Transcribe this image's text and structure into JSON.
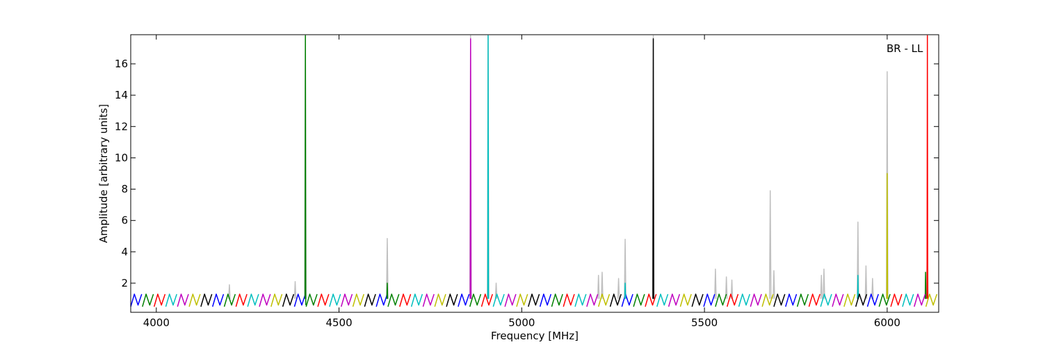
{
  "chart_data": {
    "type": "line",
    "xlabel": "Frequency [MHz]",
    "ylabel": "Amplitude [arbitrary units]",
    "annotation": "BR - LL",
    "xlim": [
      3930,
      6141
    ],
    "ylim": [
      0.14,
      17.86
    ],
    "xticks": [
      4000,
      4500,
      5000,
      5500,
      6000
    ],
    "yticks": [
      2,
      4,
      6,
      8,
      10,
      12,
      14,
      16
    ],
    "series": [
      {
        "color": "#c0c0c0",
        "x": [
          4198,
          4200,
          4202,
          null,
          4378,
          4380,
          4382,
          null,
          4406,
          4408,
          4410,
          null,
          4630,
          4632,
          4634,
          null,
          4858,
          4860,
          4862,
          null,
          4906,
          4908,
          4910,
          null,
          4928,
          4930,
          4932,
          null,
          5208,
          5210,
          5212,
          null,
          5218,
          5220,
          5222,
          null,
          5263,
          5265,
          5267,
          null,
          5281,
          5283,
          5285,
          null,
          5358,
          5360,
          5362,
          null,
          5528,
          5530,
          5532,
          null,
          5558,
          5560,
          5562,
          null,
          5573,
          5575,
          5577,
          null,
          5678,
          5680,
          5682,
          null,
          5688,
          5690,
          5692,
          null,
          5818,
          5820,
          5822,
          null,
          5825,
          5827,
          5829,
          null,
          5918,
          5920,
          5922,
          null,
          5940,
          5942,
          5944,
          null,
          5958,
          5960,
          5962,
          null,
          5998,
          6000,
          6002,
          null,
          6108,
          6110,
          6112
        ],
        "values": [
          1,
          1.9,
          1,
          null,
          1,
          2.1,
          1,
          null,
          1,
          17.8,
          1,
          null,
          1,
          4.85,
          1,
          null,
          1,
          17.8,
          1,
          null,
          1,
          17.8,
          1,
          null,
          1,
          2,
          1,
          null,
          1,
          2.5,
          1,
          null,
          1,
          2.7,
          1,
          null,
          1,
          2.3,
          1,
          null,
          1,
          4.8,
          1,
          null,
          1,
          17.8,
          1,
          null,
          1,
          2.9,
          1,
          null,
          1,
          2.4,
          1,
          null,
          1,
          2.2,
          1,
          null,
          1,
          7.9,
          1,
          null,
          1,
          2.8,
          1,
          null,
          1,
          2.5,
          1,
          null,
          1,
          2.9,
          1,
          null,
          1,
          5.9,
          1,
          null,
          1,
          3.1,
          1,
          null,
          1,
          2.3,
          1,
          null,
          1,
          15.5,
          1,
          null,
          1,
          5.3,
          1
        ]
      },
      {
        "color": "#0000ff",
        "x": [
          3930,
          3940,
          3950,
          3960,
          null,
          4154,
          4164,
          4174,
          4184,
          null,
          4378,
          4388,
          4398,
          4408,
          null,
          4602,
          4612,
          4622,
          4632,
          null,
          4826,
          4836,
          4846,
          4856,
          null,
          5050,
          5060,
          5070,
          5080,
          null,
          5274,
          5284,
          5294,
          5304,
          null,
          5498,
          5508,
          5518,
          5528,
          null,
          5722,
          5732,
          5742,
          5752,
          null,
          5946,
          5956,
          5966,
          5976
        ],
        "values": [
          0.5,
          1.3,
          0.6,
          1.3,
          null,
          0.5,
          1.3,
          0.6,
          1.3,
          null,
          0.5,
          1.3,
          0.6,
          1.3,
          null,
          0.5,
          1.3,
          0.6,
          1.3,
          null,
          0.5,
          1.3,
          0.6,
          1.3,
          null,
          0.5,
          1.3,
          0.6,
          1.3,
          null,
          0.5,
          1.3,
          0.6,
          1.3,
          null,
          0.5,
          1.3,
          0.6,
          1.3,
          null,
          0.5,
          1.3,
          0.6,
          1.3,
          null,
          0.5,
          1.3,
          0.6,
          1.3
        ]
      },
      {
        "color": "#008000",
        "x": [
          3962,
          3972,
          3982,
          3992,
          null,
          4186,
          4196,
          4206,
          4216,
          null,
          4410,
          4420,
          4430,
          4440,
          null,
          4634,
          4644,
          4654,
          4664,
          null,
          4858,
          4868,
          4878,
          4888,
          null,
          5082,
          5092,
          5102,
          5112,
          null,
          5306,
          5316,
          5326,
          5336,
          null,
          5530,
          5540,
          5550,
          5560,
          null,
          5754,
          5764,
          5774,
          5784,
          null,
          5978,
          5988,
          5998,
          6008,
          null,
          4407,
          4408,
          4409,
          null,
          4631,
          4632,
          4633,
          null,
          6104,
          6105,
          6106
        ],
        "values": [
          0.5,
          1.3,
          0.6,
          1.3,
          null,
          0.5,
          1.3,
          0.6,
          1.3,
          null,
          0.5,
          1.3,
          0.6,
          1.3,
          null,
          0.5,
          1.3,
          0.6,
          1.3,
          null,
          0.5,
          1.3,
          0.6,
          1.3,
          null,
          0.5,
          1.3,
          0.6,
          1.3,
          null,
          0.5,
          1.3,
          0.6,
          1.3,
          null,
          0.5,
          1.3,
          0.6,
          1.3,
          null,
          0.5,
          1.3,
          0.6,
          1.3,
          null,
          0.5,
          1.3,
          0.6,
          1.3,
          null,
          1,
          17.8,
          0.6,
          null,
          1,
          2,
          1,
          null,
          1,
          2.7,
          1
        ]
      },
      {
        "color": "#ff0000",
        "x": [
          3994,
          4004,
          4014,
          4024,
          null,
          4218,
          4228,
          4238,
          4248,
          null,
          4442,
          4452,
          4462,
          4472,
          null,
          4666,
          4676,
          4686,
          4696,
          null,
          4890,
          4900,
          4910,
          4920,
          null,
          5114,
          5124,
          5134,
          5144,
          null,
          5338,
          5348,
          5358,
          5368,
          null,
          5562,
          5572,
          5582,
          5592,
          null,
          5786,
          5796,
          5806,
          5816,
          null,
          6010,
          6020,
          6030,
          6040,
          null,
          6109,
          6110,
          6111
        ],
        "values": [
          0.5,
          1.3,
          0.6,
          1.3,
          null,
          0.5,
          1.3,
          0.6,
          1.3,
          null,
          0.5,
          1.3,
          0.6,
          1.3,
          null,
          0.5,
          1.3,
          0.6,
          1.3,
          null,
          0.5,
          1.3,
          0.6,
          1.3,
          null,
          0.5,
          1.3,
          0.6,
          1.3,
          null,
          0.5,
          1.3,
          0.6,
          1.3,
          null,
          0.5,
          1.3,
          0.6,
          1.3,
          null,
          0.5,
          1.3,
          0.6,
          1.3,
          null,
          0.5,
          1.3,
          0.6,
          1.3,
          null,
          1,
          17.8,
          1
        ]
      },
      {
        "color": "#00bfbf",
        "x": [
          4026,
          4036,
          4046,
          4056,
          null,
          4250,
          4260,
          4270,
          4280,
          null,
          4474,
          4484,
          4494,
          4504,
          null,
          4698,
          4708,
          4718,
          4728,
          null,
          4922,
          4932,
          4942,
          4952,
          null,
          5146,
          5156,
          5166,
          5176,
          null,
          5370,
          5380,
          5390,
          5400,
          null,
          5594,
          5604,
          5614,
          5624,
          null,
          5818,
          5828,
          5838,
          5848,
          null,
          6042,
          6052,
          6062,
          6072,
          null,
          4907,
          4908,
          4909,
          null,
          5282,
          5283,
          5284,
          null,
          5919,
          5920,
          5921
        ],
        "values": [
          0.5,
          1.3,
          0.6,
          1.3,
          null,
          0.5,
          1.3,
          0.6,
          1.3,
          null,
          0.5,
          1.3,
          0.6,
          1.3,
          null,
          0.5,
          1.3,
          0.6,
          1.3,
          null,
          0.5,
          1.3,
          0.6,
          1.3,
          null,
          0.5,
          1.3,
          0.6,
          1.3,
          null,
          0.5,
          1.3,
          0.6,
          1.3,
          null,
          0.5,
          1.3,
          0.6,
          1.3,
          null,
          0.5,
          1.3,
          0.6,
          1.3,
          null,
          0.5,
          1.3,
          0.6,
          1.3,
          null,
          1,
          17.8,
          1,
          null,
          1,
          2,
          1,
          null,
          1,
          2.5,
          1
        ]
      },
      {
        "color": "#bf00bf",
        "x": [
          4058,
          4068,
          4078,
          4088,
          null,
          4282,
          4292,
          4302,
          4312,
          null,
          4506,
          4516,
          4526,
          4536,
          null,
          4730,
          4740,
          4750,
          4760,
          null,
          4954,
          4964,
          4974,
          4984,
          null,
          5178,
          5188,
          5198,
          5208,
          null,
          5402,
          5412,
          5422,
          5432,
          null,
          5626,
          5636,
          5646,
          5656,
          null,
          5850,
          5860,
          5870,
          5880,
          null,
          6074,
          6084,
          6094,
          6104,
          null,
          4859,
          4860,
          4861
        ],
        "values": [
          0.5,
          1.3,
          0.6,
          1.3,
          null,
          0.5,
          1.3,
          0.6,
          1.3,
          null,
          0.5,
          1.3,
          0.6,
          1.3,
          null,
          0.5,
          1.3,
          0.6,
          1.3,
          null,
          0.5,
          1.3,
          0.6,
          1.3,
          null,
          0.5,
          1.3,
          0.6,
          1.3,
          null,
          0.5,
          1.3,
          0.6,
          1.3,
          null,
          0.5,
          1.3,
          0.6,
          1.3,
          null,
          0.5,
          1.3,
          0.6,
          1.3,
          null,
          0.5,
          1.3,
          0.6,
          1.3,
          null,
          1,
          17.6,
          1
        ]
      },
      {
        "color": "#bfbf00",
        "x": [
          4090,
          4100,
          4110,
          4120,
          null,
          4314,
          4324,
          4334,
          4344,
          null,
          4538,
          4548,
          4558,
          4568,
          null,
          4762,
          4772,
          4782,
          4792,
          null,
          4986,
          4996,
          5006,
          5016,
          null,
          5210,
          5220,
          5230,
          5240,
          null,
          5434,
          5444,
          5454,
          5464,
          null,
          5658,
          5668,
          5678,
          5688,
          null,
          5882,
          5892,
          5902,
          5912,
          null,
          6106,
          6116,
          6126,
          6136,
          null,
          5999,
          6000,
          6001
        ],
        "values": [
          0.5,
          1.3,
          0.6,
          1.3,
          null,
          0.5,
          1.3,
          0.6,
          1.3,
          null,
          0.5,
          1.3,
          0.6,
          1.3,
          null,
          0.5,
          1.3,
          0.6,
          1.3,
          null,
          0.5,
          1.3,
          0.6,
          1.3,
          null,
          0.5,
          1.3,
          0.6,
          1.3,
          null,
          0.5,
          1.3,
          0.6,
          1.3,
          null,
          0.5,
          1.3,
          0.6,
          1.3,
          null,
          0.5,
          1.3,
          0.6,
          1.3,
          null,
          0.5,
          1.3,
          0.6,
          1.3,
          null,
          1,
          9,
          1
        ]
      },
      {
        "color": "#000000",
        "x": [
          4122,
          4132,
          4142,
          4152,
          null,
          4346,
          4356,
          4366,
          4376,
          null,
          4570,
          4580,
          4590,
          4600,
          null,
          4794,
          4804,
          4814,
          4824,
          null,
          5018,
          5028,
          5038,
          5048,
          null,
          5242,
          5252,
          5262,
          5272,
          null,
          5466,
          5476,
          5486,
          5496,
          null,
          5690,
          5700,
          5710,
          5720,
          null,
          5914,
          5924,
          5934,
          5944,
          null,
          5359,
          5360,
          5361
        ],
        "values": [
          0.5,
          1.3,
          0.6,
          1.3,
          null,
          0.5,
          1.3,
          0.6,
          1.3,
          null,
          0.5,
          1.3,
          0.6,
          1.3,
          null,
          0.5,
          1.3,
          0.6,
          1.3,
          null,
          0.5,
          1.3,
          0.6,
          1.3,
          null,
          0.5,
          1.3,
          0.6,
          1.3,
          null,
          0.5,
          1.3,
          0.6,
          1.3,
          null,
          0.5,
          1.3,
          0.6,
          1.3,
          null,
          0.5,
          1.3,
          0.6,
          1.3,
          null,
          1,
          17.6,
          1
        ]
      }
    ]
  }
}
